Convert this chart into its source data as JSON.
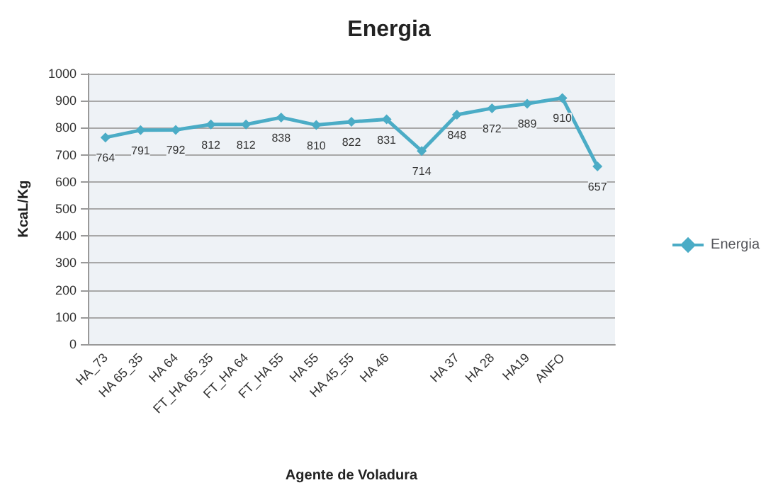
{
  "chart_data": {
    "type": "line",
    "title": "Energia",
    "xlabel": "Agente de Voladura",
    "ylabel": "KcaL/Kg",
    "categories": [
      "HA_73",
      "HA 65_35",
      "HA 64",
      "FT_HA 65_35",
      "FT_HA 64",
      "FT_HA 55",
      "HA 55",
      "HA 45_55",
      "HA 46",
      null,
      "HA 37",
      "HA 28",
      "HA19",
      "ANFO",
      null
    ],
    "series": [
      {
        "name": "Energia",
        "color": "#4bacc6",
        "values": [
          764,
          791,
          792,
          812,
          812,
          838,
          810,
          822,
          831,
          714,
          848,
          872,
          889,
          910,
          657
        ]
      }
    ],
    "ylim": [
      0,
      1000
    ],
    "yticks": [
      0,
      100,
      200,
      300,
      400,
      500,
      600,
      700,
      800,
      900,
      1000
    ],
    "grid": "y",
    "legend": "right",
    "marker": "diamond",
    "data_labels": true
  }
}
